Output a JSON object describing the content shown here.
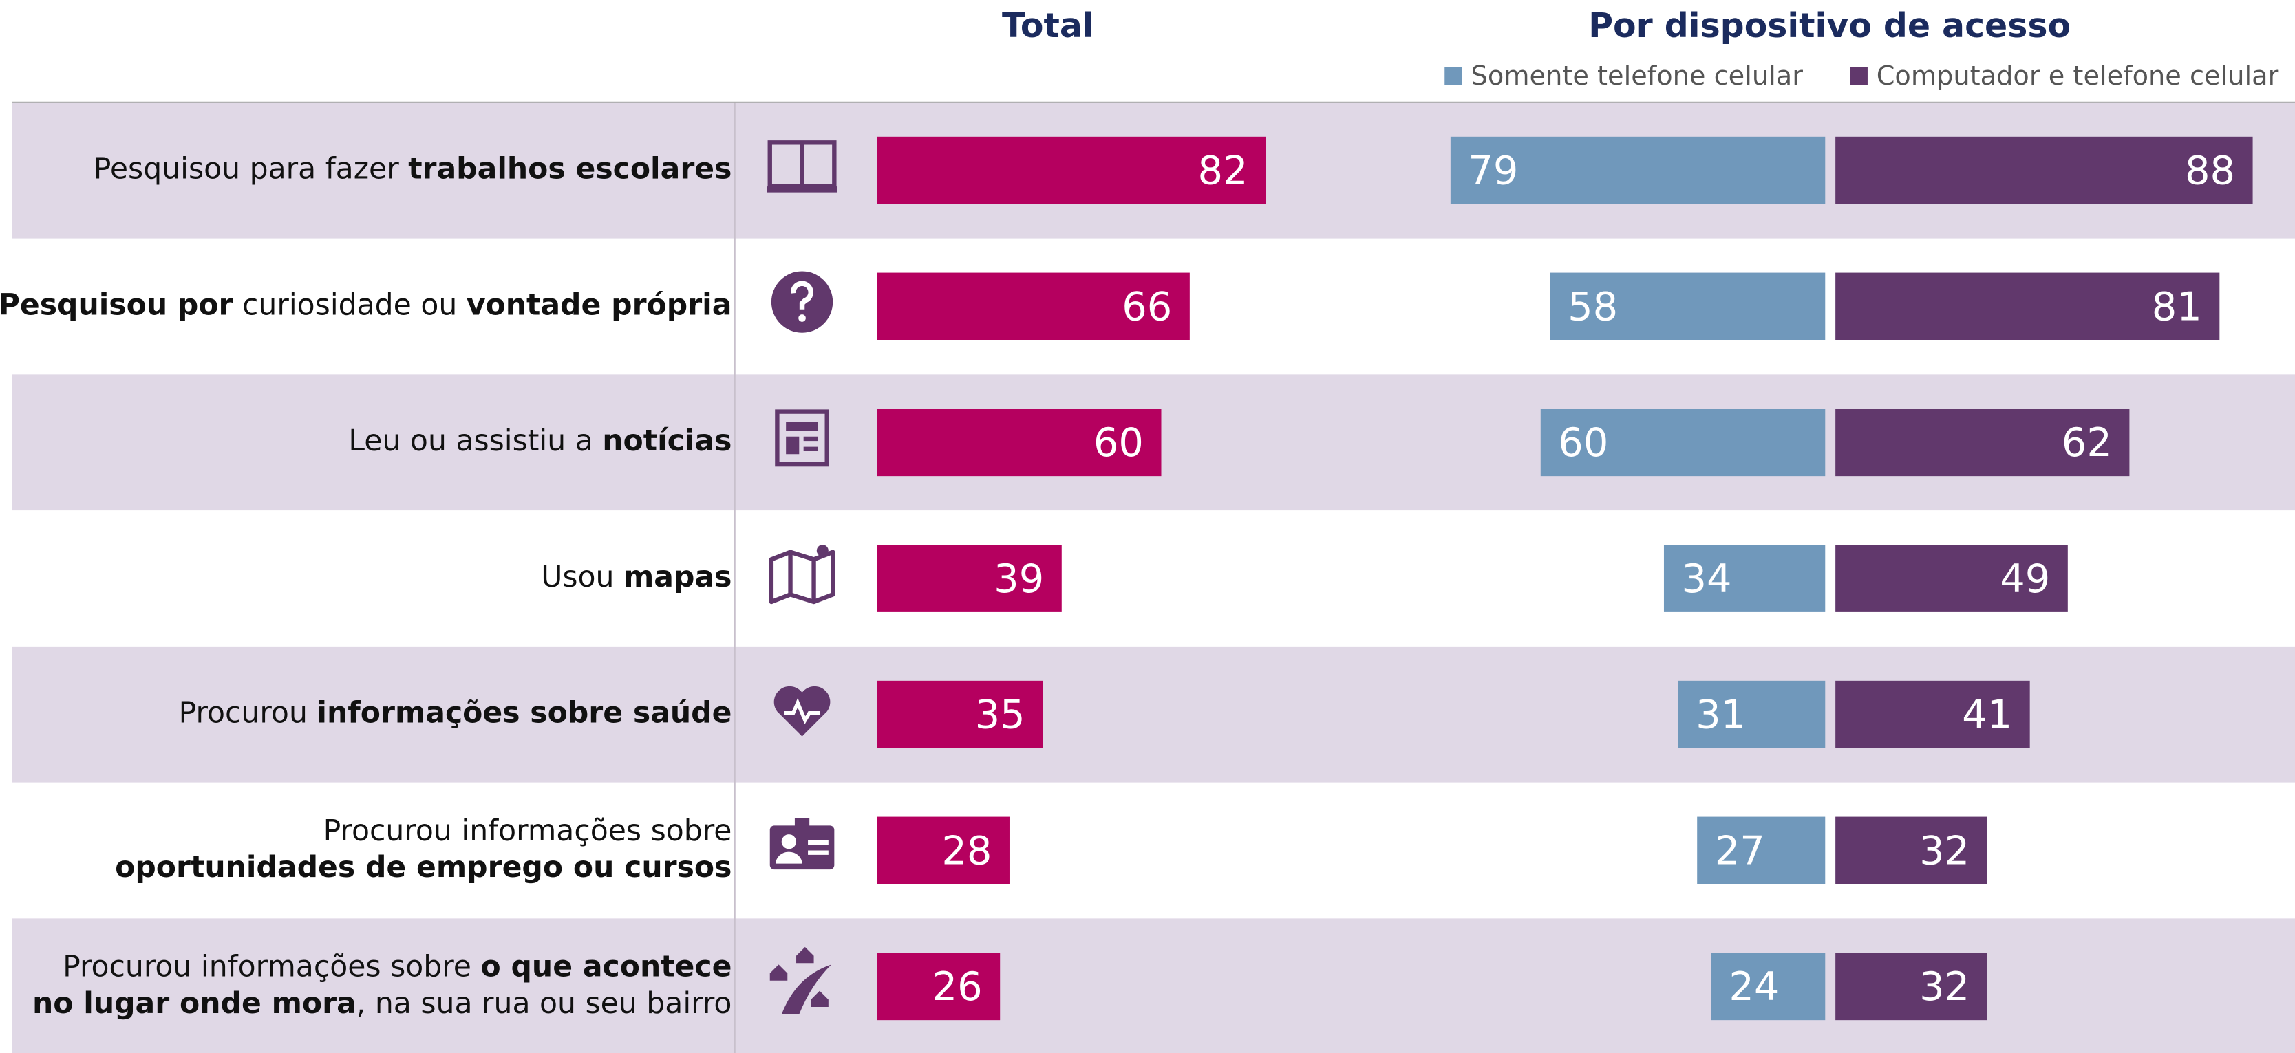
{
  "chart_data": [
    {
      "type": "bar",
      "title": "Total",
      "categories": [
        [
          [
            {
              "text": "Pesquisou para fazer ",
              "bold": false
            },
            {
              "text": "trabalhos escolares",
              "bold": true
            }
          ]
        ],
        [
          [
            {
              "text": "Pesquisou por",
              "bold": true
            },
            {
              "text": " curiosidade ou ",
              "bold": false
            },
            {
              "text": "vontade própria",
              "bold": true
            }
          ]
        ],
        [
          [
            {
              "text": "Leu ou assistiu a ",
              "bold": false
            },
            {
              "text": "notícias",
              "bold": true
            }
          ]
        ],
        [
          [
            {
              "text": "Usou ",
              "bold": false
            },
            {
              "text": "mapas",
              "bold": true
            }
          ]
        ],
        [
          [
            {
              "text": "Procurou ",
              "bold": false
            },
            {
              "text": "informações sobre saúde",
              "bold": true
            }
          ]
        ],
        [
          [
            {
              "text": "Procurou informações sobre",
              "bold": false
            }
          ],
          [
            {
              "text": "oportunidades de emprego ou cursos",
              "bold": true
            }
          ]
        ],
        [
          [
            {
              "text": "Procurou informações sobre ",
              "bold": false
            },
            {
              "text": "o que acontece",
              "bold": true
            }
          ],
          [
            {
              "text": "no lugar onde mora",
              "bold": true
            },
            {
              "text": ", na sua rua ou seu bairro",
              "bold": false
            }
          ]
        ]
      ],
      "series": [
        {
          "color": "#b5005f",
          "values": [
            82,
            66,
            60,
            39,
            35,
            28,
            26
          ]
        }
      ]
    },
    {
      "type": "butterfly",
      "title": "Por dispositivo de acesso",
      "series": [
        {
          "name": "Somente telefone celular",
          "color": "#7098bb",
          "values": [
            79,
            58,
            60,
            34,
            31,
            27,
            24
          ]
        },
        {
          "name": "Computador e telefone celular",
          "color": "#61386c",
          "values": [
            88,
            81,
            62,
            49,
            41,
            32,
            32
          ]
        }
      ]
    }
  ]
}
